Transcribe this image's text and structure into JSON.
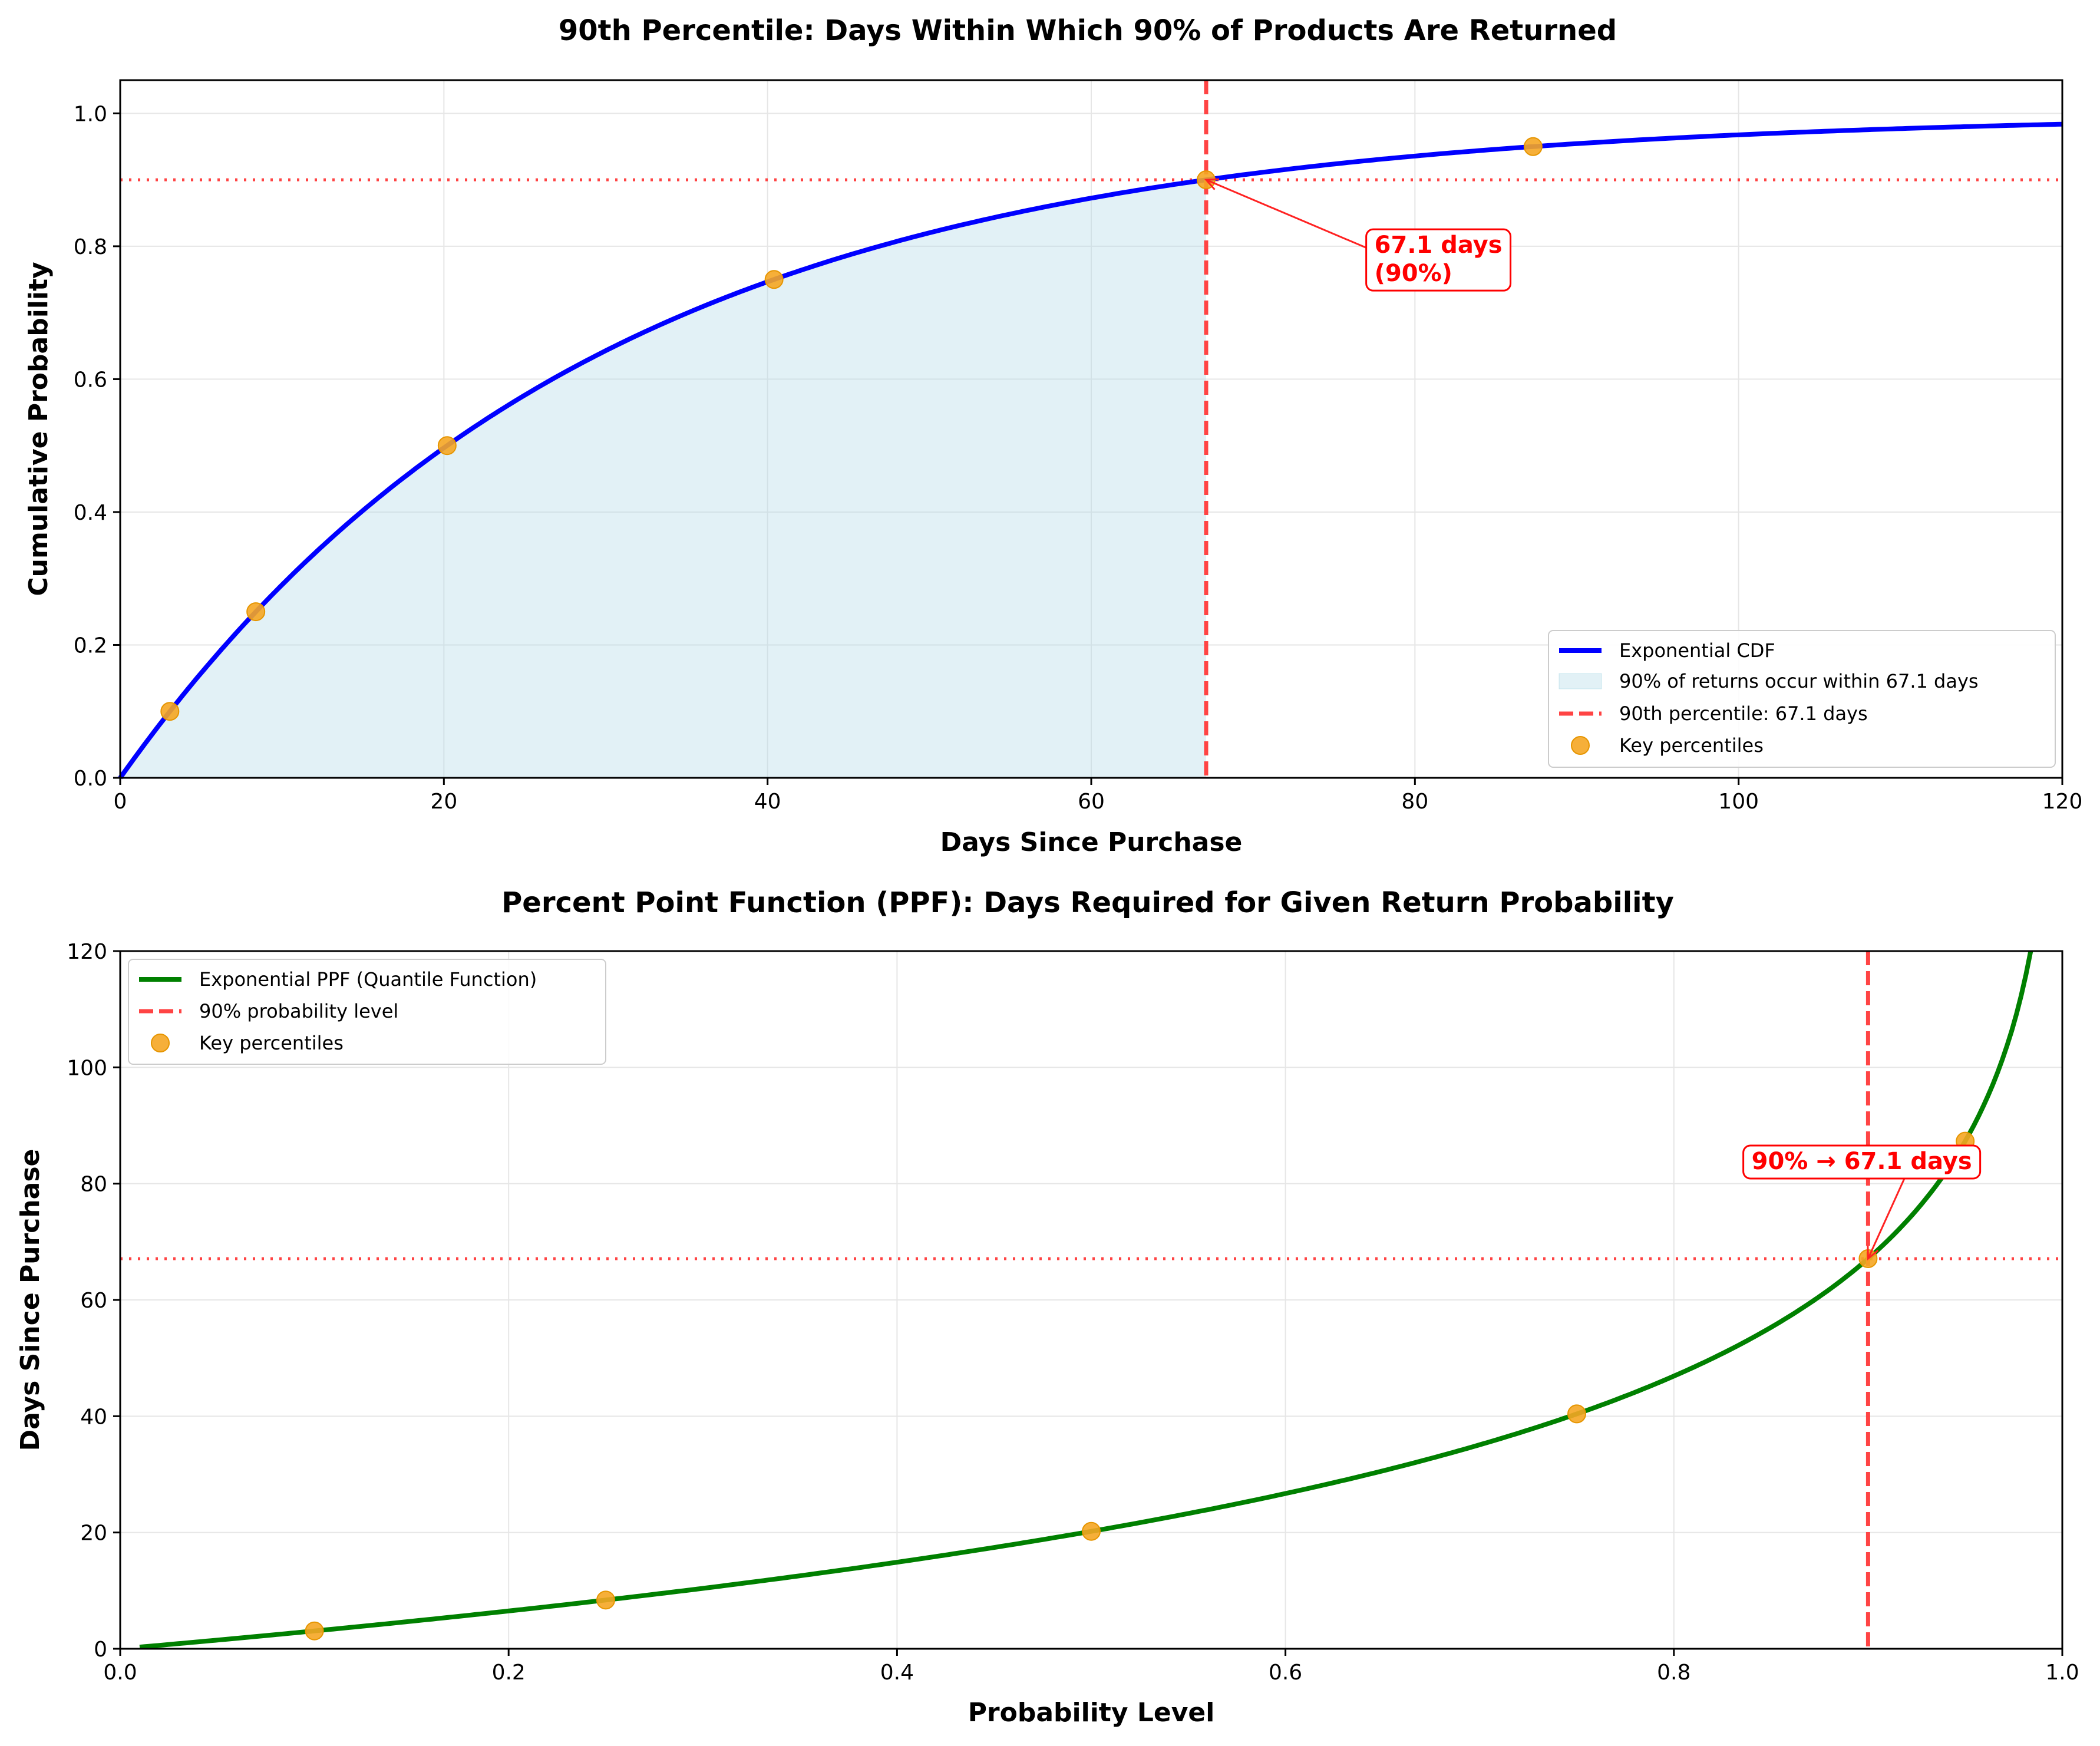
{
  "chart_data": [
    {
      "type": "line",
      "title": "90th Percentile: Days Within Which 90% of Products Are Returned",
      "xlabel": "Days Since Purchase",
      "ylabel": "Cumulative Probability",
      "xlim": [
        0,
        120
      ],
      "ylim": [
        0,
        1.05
      ],
      "xticks": [
        0,
        20,
        40,
        60,
        80,
        100,
        120
      ],
      "xtick_labels": [
        "0",
        "20",
        "40",
        "60",
        "80",
        "100",
        "120"
      ],
      "yticks": [
        0,
        0.2,
        0.4,
        0.6,
        0.8,
        1.0
      ],
      "ytick_labels": [
        "0.0",
        "0.2",
        "0.4",
        "0.6",
        "0.8",
        "1.0"
      ],
      "grid": true,
      "curve": {
        "name": "Exponential CDF",
        "kind": "exponential_cdf",
        "mean_days": 29.14,
        "x_start": 0,
        "x_end": 120,
        "color": "#0000ff"
      },
      "shaded_region": {
        "name": "90% of returns occur within 67.1 days",
        "x_start": 0,
        "x_end": 67.1,
        "color": "#add8e6"
      },
      "vline": {
        "name": "90th percentile: 67.1 days",
        "x": 67.1,
        "color": "#ff4444"
      },
      "hline": {
        "y": 0.9,
        "color": "#ff4444"
      },
      "points": {
        "name": "Key percentiles",
        "color": "#f5a623",
        "x": [
          3.07,
          8.38,
          20.2,
          40.4,
          67.1,
          87.3
        ],
        "y": [
          0.1,
          0.25,
          0.5,
          0.75,
          0.9,
          0.95
        ]
      },
      "annotation": {
        "lines": [
          "67.1 days",
          "(90%)"
        ],
        "x": 67.1,
        "y": 0.9,
        "text_x": 77.5,
        "text_y": 0.79
      },
      "legend": [
        "Exponential CDF",
        "90% of returns occur within 67.1 days",
        "90th percentile: 67.1 days",
        "Key percentiles"
      ],
      "legend_position": "lower-right"
    },
    {
      "type": "line",
      "title": "Percent Point Function (PPF): Days Required for Given Return Probability",
      "xlabel": "Probability Level",
      "ylabel": "Days Since Purchase",
      "xlim": [
        0,
        1.0
      ],
      "ylim": [
        0,
        120
      ],
      "xticks": [
        0,
        0.2,
        0.4,
        0.6,
        0.8,
        1.0
      ],
      "xtick_labels": [
        "0.0",
        "0.2",
        "0.4",
        "0.6",
        "0.8",
        "1.0"
      ],
      "yticks": [
        0,
        20,
        40,
        60,
        80,
        100,
        120
      ],
      "ytick_labels": [
        "0",
        "20",
        "40",
        "60",
        "80",
        "100",
        "120"
      ],
      "grid": true,
      "curve": {
        "name": "Exponential PPF (Quantile Function)",
        "kind": "exponential_ppf",
        "mean_days": 29.14,
        "p_start": 0.01,
        "p_end": 0.99,
        "color": "#008000"
      },
      "vline": {
        "name": "90% probability level",
        "x": 0.9,
        "color": "#ff4444"
      },
      "hline": {
        "y": 67.1,
        "color": "#ff4444"
      },
      "points": {
        "name": "Key percentiles",
        "color": "#f5a623",
        "x": [
          0.1,
          0.25,
          0.5,
          0.75,
          0.9,
          0.95
        ],
        "y": [
          3.07,
          8.38,
          20.2,
          40.4,
          67.1,
          87.3
        ]
      },
      "annotation": {
        "lines": [
          "90% → 67.1 days"
        ],
        "x": 0.9,
        "y": 67.1,
        "text_x": 0.84,
        "text_y": 82.5
      },
      "legend": [
        "Exponential PPF (Quantile Function)",
        "90% probability level",
        "Key percentiles"
      ],
      "legend_position": "upper-left"
    }
  ]
}
